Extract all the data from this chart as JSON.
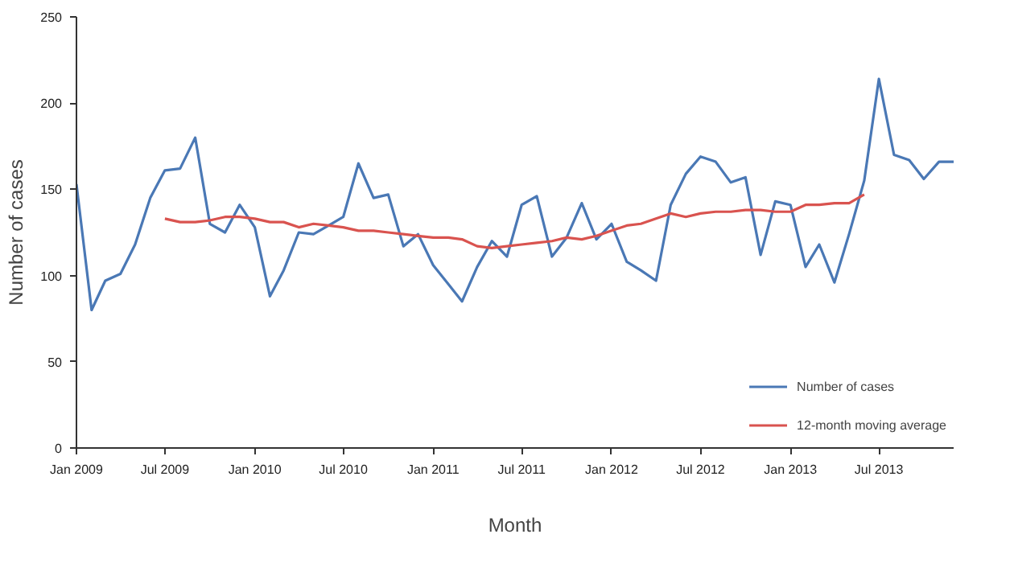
{
  "chart_data": {
    "type": "line",
    "xlabel": "Month",
    "ylabel": "Number of cases",
    "xlim": [
      "2009-01",
      "2013-12"
    ],
    "xticks": [
      {
        "value": "2009-01",
        "label": "Jan 2009"
      },
      {
        "value": "2009-07",
        "label": "Jul 2009"
      },
      {
        "value": "2010-01",
        "label": "Jan 2010"
      },
      {
        "value": "2010-07",
        "label": "Jul 2010"
      },
      {
        "value": "2011-01",
        "label": "Jan 2011"
      },
      {
        "value": "2011-07",
        "label": "Jul 2011"
      },
      {
        "value": "2012-01",
        "label": "Jan 2012"
      },
      {
        "value": "2012-07",
        "label": "Jul 2012"
      },
      {
        "value": "2013-01",
        "label": "Jan 2013"
      },
      {
        "value": "2013-07",
        "label": "Jul 2013"
      }
    ],
    "ylim": [
      0,
      250
    ],
    "yticks": [
      0,
      50,
      100,
      150,
      200,
      250
    ],
    "grid": false,
    "legend": "bottom right",
    "line_style": "solid",
    "marker": "none",
    "series": [
      {
        "name": "Number of cases",
        "color": "#4a78b5",
        "x": [
          "2009-01",
          "2009-02",
          "2009-03",
          "2009-04",
          "2009-05",
          "2009-06",
          "2009-07",
          "2009-08",
          "2009-09",
          "2009-10",
          "2009-11",
          "2009-12",
          "2010-01",
          "2010-02",
          "2010-03",
          "2010-04",
          "2010-05",
          "2010-06",
          "2010-07",
          "2010-08",
          "2010-09",
          "2010-10",
          "2010-11",
          "2010-12",
          "2011-01",
          "2011-02",
          "2011-03",
          "2011-04",
          "2011-05",
          "2011-06",
          "2011-07",
          "2011-08",
          "2011-09",
          "2011-10",
          "2011-11",
          "2011-12",
          "2012-01",
          "2012-02",
          "2012-03",
          "2012-04",
          "2012-05",
          "2012-06",
          "2012-07",
          "2012-08",
          "2012-09",
          "2012-10",
          "2012-11",
          "2012-12",
          "2013-01",
          "2013-02",
          "2013-03",
          "2013-04",
          "2013-05",
          "2013-06",
          "2013-07",
          "2013-08",
          "2013-09",
          "2013-10",
          "2013-11",
          "2013-12"
        ],
        "values": [
          153,
          80,
          97,
          101,
          118,
          145,
          161,
          162,
          180,
          130,
          125,
          141,
          128,
          88,
          103,
          125,
          124,
          129,
          134,
          165,
          145,
          147,
          117,
          124,
          106,
          95,
          85,
          105,
          120,
          111,
          141,
          146,
          111,
          122,
          142,
          121,
          130,
          108,
          103,
          97,
          141,
          159,
          169,
          166,
          154,
          157,
          112,
          143,
          141,
          105,
          118,
          96,
          124,
          155,
          214,
          170,
          167,
          156,
          166,
          166
        ]
      },
      {
        "name": "12-month moving average",
        "color": "#d9534f",
        "x": [
          "2009-07",
          "2009-08",
          "2009-09",
          "2009-10",
          "2009-11",
          "2009-12",
          "2010-01",
          "2010-02",
          "2010-03",
          "2010-04",
          "2010-05",
          "2010-06",
          "2010-07",
          "2010-08",
          "2010-09",
          "2010-10",
          "2010-11",
          "2010-12",
          "2011-01",
          "2011-02",
          "2011-03",
          "2011-04",
          "2011-05",
          "2011-06",
          "2011-07",
          "2011-08",
          "2011-09",
          "2011-10",
          "2011-11",
          "2011-12",
          "2012-01",
          "2012-02",
          "2012-03",
          "2012-04",
          "2012-05",
          "2012-06",
          "2012-07",
          "2012-08",
          "2012-09",
          "2012-10",
          "2012-11",
          "2012-12",
          "2013-01",
          "2013-02",
          "2013-03",
          "2013-04",
          "2013-05",
          "2013-06"
        ],
        "values": [
          133,
          131,
          131,
          132,
          134,
          134,
          133,
          131,
          131,
          128,
          130,
          129,
          128,
          126,
          126,
          125,
          124,
          123,
          122,
          122,
          121,
          117,
          116,
          117,
          118,
          119,
          120,
          122,
          121,
          123,
          126,
          129,
          130,
          133,
          136,
          134,
          136,
          137,
          137,
          138,
          138,
          137,
          137,
          141,
          141,
          142,
          142,
          147
        ]
      }
    ]
  }
}
